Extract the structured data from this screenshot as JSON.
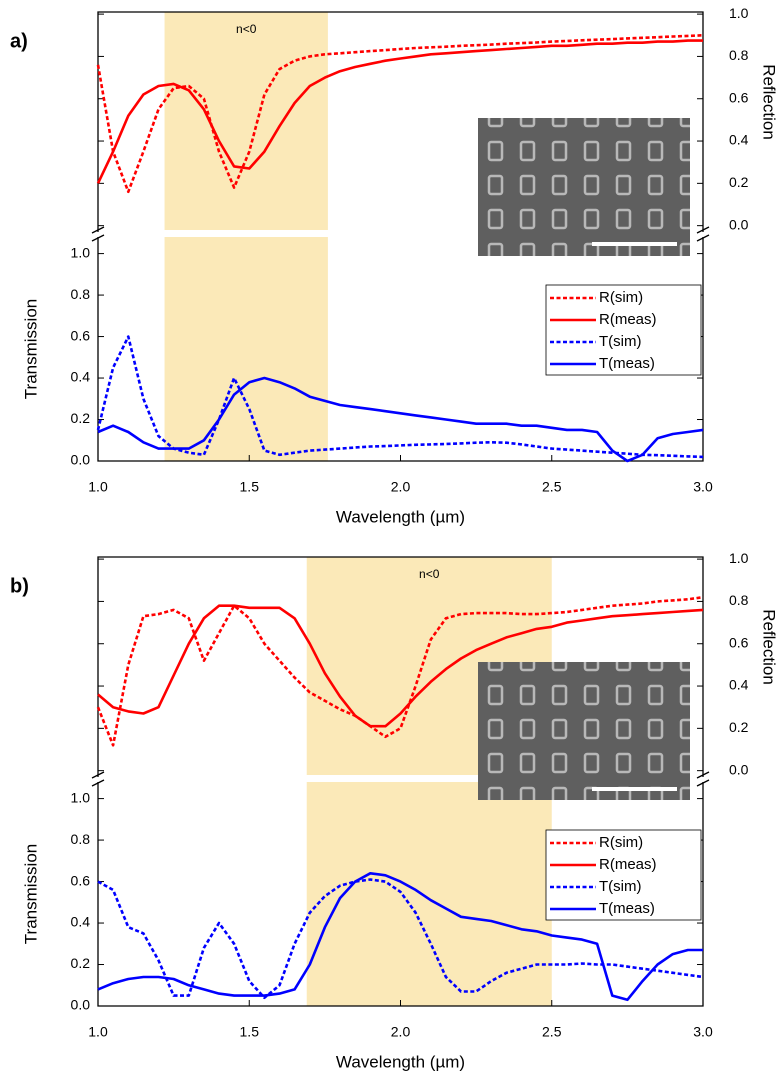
{
  "chart_data": [
    {
      "type": "line",
      "panel_label": "a)",
      "annotation": "n<0",
      "band": [
        1.22,
        1.76
      ],
      "xlabel": "Wavelength (µm)",
      "ylabel": "Transmission",
      "y2label": "Reflection",
      "xlim": [
        1,
        3
      ],
      "ylim": [
        0,
        1.08
      ],
      "y2lim": [
        -0.03,
        1.01
      ],
      "xticks": [
        {
          "value": 1,
          "label": "1.0"
        },
        {
          "value": 1.5,
          "label": "1.5"
        },
        {
          "value": 2,
          "label": "2.0"
        },
        {
          "value": 2.5,
          "label": "2.5"
        },
        {
          "value": 3,
          "label": "3.0"
        }
      ],
      "yticks": [
        {
          "value": 0,
          "label": "0.0"
        },
        0.2,
        0.4,
        0.6,
        0.8,
        {
          "value": 1,
          "label": "1.0"
        }
      ],
      "y2ticks": [
        {
          "value": 0,
          "label": "0.0"
        },
        0.2,
        0.4,
        0.6,
        0.8,
        {
          "value": 1,
          "label": "1.0"
        }
      ],
      "x": [
        1,
        1.05,
        1.1,
        1.15,
        1.2,
        1.25,
        1.3,
        1.35,
        1.4,
        1.45,
        1.5,
        1.55,
        1.6,
        1.65,
        1.7,
        1.75,
        1.8,
        1.85,
        1.9,
        1.95,
        2,
        2.05,
        2.1,
        2.15,
        2.2,
        2.25,
        2.3,
        2.35,
        2.4,
        2.45,
        2.5,
        2.55,
        2.6,
        2.65,
        2.7,
        2.75,
        2.8,
        2.85,
        2.9,
        2.95,
        3
      ],
      "series": [
        {
          "name": "R(sim)",
          "color": "#ff0000",
          "style": "dashed",
          "axis": "y2",
          "values": [
            0.76,
            0.35,
            0.16,
            0.35,
            0.55,
            0.65,
            0.66,
            0.6,
            0.35,
            0.18,
            0.35,
            0.62,
            0.74,
            0.78,
            0.8,
            0.81,
            0.815,
            0.82,
            0.825,
            0.83,
            0.835,
            0.84,
            0.843,
            0.846,
            0.85,
            0.853,
            0.856,
            0.86,
            0.863,
            0.866,
            0.87,
            0.873,
            0.876,
            0.879,
            0.882,
            0.885,
            0.888,
            0.891,
            0.894,
            0.897,
            0.9
          ]
        },
        {
          "name": "R(meas)",
          "color": "#ff0000",
          "style": "solid",
          "axis": "y2",
          "values": [
            0.2,
            0.35,
            0.52,
            0.62,
            0.66,
            0.67,
            0.64,
            0.55,
            0.4,
            0.28,
            0.27,
            0.35,
            0.47,
            0.58,
            0.66,
            0.7,
            0.73,
            0.75,
            0.765,
            0.78,
            0.79,
            0.8,
            0.81,
            0.815,
            0.82,
            0.825,
            0.83,
            0.835,
            0.84,
            0.845,
            0.85,
            0.85,
            0.855,
            0.86,
            0.86,
            0.865,
            0.865,
            0.87,
            0.87,
            0.875,
            0.875
          ]
        },
        {
          "name": "T(sim)",
          "color": "#0000ff",
          "style": "dashed",
          "values": [
            0.15,
            0.45,
            0.6,
            0.3,
            0.12,
            0.06,
            0.04,
            0.03,
            0.2,
            0.4,
            0.25,
            0.05,
            0.03,
            0.04,
            0.05,
            0.055,
            0.06,
            0.065,
            0.07,
            0.072,
            0.075,
            0.078,
            0.08,
            0.082,
            0.085,
            0.088,
            0.09,
            0.088,
            0.08,
            0.07,
            0.06,
            0.055,
            0.05,
            0.045,
            0.04,
            0.035,
            0.03,
            0.028,
            0.025,
            0.022,
            0.02
          ]
        },
        {
          "name": "T(meas)",
          "color": "#0000ff",
          "style": "solid",
          "values": [
            0.14,
            0.17,
            0.14,
            0.09,
            0.06,
            0.06,
            0.06,
            0.1,
            0.2,
            0.32,
            0.38,
            0.4,
            0.38,
            0.35,
            0.31,
            0.29,
            0.27,
            0.26,
            0.25,
            0.24,
            0.23,
            0.22,
            0.21,
            0.2,
            0.19,
            0.18,
            0.18,
            0.18,
            0.17,
            0.17,
            0.16,
            0.15,
            0.15,
            0.14,
            0.05,
            0,
            0.03,
            0.11,
            0.13,
            0.14,
            0.15
          ]
        }
      ]
    },
    {
      "type": "line",
      "panel_label": "b)",
      "annotation": "n<0",
      "band": [
        1.69,
        2.5
      ],
      "xlabel": "Wavelength (µm)",
      "ylabel": "Transmission",
      "y2label": "Reflection",
      "xlim": [
        1,
        3
      ],
      "ylim": [
        0,
        1.08
      ],
      "y2lim": [
        -0.03,
        1.01
      ],
      "xticks": [
        {
          "value": 1,
          "label": "1.0"
        },
        {
          "value": 1.5,
          "label": "1.5"
        },
        {
          "value": 2,
          "label": "2.0"
        },
        {
          "value": 2.5,
          "label": "2.5"
        },
        {
          "value": 3,
          "label": "3.0"
        }
      ],
      "yticks": [
        {
          "value": 0,
          "label": "0.0"
        },
        0.2,
        0.4,
        0.6,
        0.8,
        {
          "value": 1,
          "label": "1.0"
        }
      ],
      "y2ticks": [
        {
          "value": 0,
          "label": "0.0"
        },
        0.2,
        0.4,
        0.6,
        0.8,
        {
          "value": 1,
          "label": "1.0"
        }
      ],
      "x": [
        1,
        1.05,
        1.1,
        1.15,
        1.2,
        1.25,
        1.3,
        1.35,
        1.4,
        1.45,
        1.5,
        1.55,
        1.6,
        1.65,
        1.7,
        1.75,
        1.8,
        1.85,
        1.9,
        1.95,
        2,
        2.05,
        2.1,
        2.15,
        2.2,
        2.25,
        2.3,
        2.35,
        2.4,
        2.45,
        2.5,
        2.55,
        2.6,
        2.65,
        2.7,
        2.75,
        2.8,
        2.85,
        2.9,
        2.95,
        3
      ],
      "series": [
        {
          "name": "R(sim)",
          "color": "#ff0000",
          "style": "dashed",
          "axis": "y2",
          "values": [
            0.3,
            0.12,
            0.5,
            0.73,
            0.74,
            0.76,
            0.72,
            0.52,
            0.65,
            0.78,
            0.72,
            0.6,
            0.52,
            0.44,
            0.37,
            0.33,
            0.29,
            0.26,
            0.21,
            0.16,
            0.2,
            0.4,
            0.62,
            0.72,
            0.74,
            0.745,
            0.745,
            0.745,
            0.74,
            0.74,
            0.745,
            0.75,
            0.76,
            0.77,
            0.78,
            0.785,
            0.79,
            0.8,
            0.805,
            0.81,
            0.82
          ]
        },
        {
          "name": "R(meas)",
          "color": "#ff0000",
          "style": "solid",
          "axis": "y2",
          "values": [
            0.36,
            0.3,
            0.28,
            0.27,
            0.3,
            0.45,
            0.6,
            0.72,
            0.78,
            0.78,
            0.77,
            0.77,
            0.77,
            0.72,
            0.6,
            0.46,
            0.35,
            0.26,
            0.21,
            0.21,
            0.27,
            0.35,
            0.42,
            0.48,
            0.53,
            0.57,
            0.6,
            0.63,
            0.65,
            0.67,
            0.68,
            0.7,
            0.71,
            0.72,
            0.73,
            0.735,
            0.74,
            0.745,
            0.75,
            0.755,
            0.76
          ]
        },
        {
          "name": "T(sim)",
          "color": "#0000ff",
          "style": "dashed",
          "values": [
            0.6,
            0.56,
            0.38,
            0.35,
            0.22,
            0.05,
            0.05,
            0.28,
            0.4,
            0.3,
            0.12,
            0.04,
            0.1,
            0.3,
            0.45,
            0.53,
            0.58,
            0.6,
            0.61,
            0.6,
            0.55,
            0.45,
            0.3,
            0.14,
            0.07,
            0.07,
            0.12,
            0.16,
            0.18,
            0.2,
            0.2,
            0.2,
            0.205,
            0.2,
            0.2,
            0.19,
            0.18,
            0.17,
            0.16,
            0.15,
            0.14
          ]
        },
        {
          "name": "T(meas)",
          "color": "#0000ff",
          "style": "solid",
          "values": [
            0.08,
            0.11,
            0.13,
            0.14,
            0.14,
            0.13,
            0.1,
            0.08,
            0.06,
            0.05,
            0.05,
            0.05,
            0.06,
            0.08,
            0.2,
            0.38,
            0.52,
            0.6,
            0.64,
            0.63,
            0.6,
            0.56,
            0.51,
            0.47,
            0.43,
            0.42,
            0.41,
            0.39,
            0.37,
            0.36,
            0.34,
            0.33,
            0.32,
            0.3,
            0.05,
            0.03,
            0.12,
            0.2,
            0.25,
            0.27,
            0.27
          ]
        }
      ]
    }
  ]
}
